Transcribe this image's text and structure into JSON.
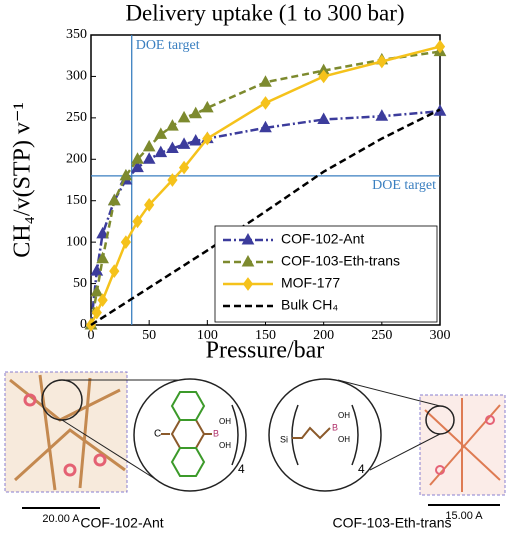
{
  "chart_data": {
    "type": "line",
    "title": "Delivery uptake (1 to 300 bar)",
    "x_label": "Pressure/bar",
    "y_label": "CH₄/v(STP) v⁻¹",
    "xlim": [
      0,
      300
    ],
    "xticks": [
      0,
      50,
      100,
      150,
      200,
      250,
      300
    ],
    "ylim": [
      0,
      350
    ],
    "yticks": [
      0,
      50,
      100,
      150,
      200,
      250,
      300,
      350
    ],
    "legend": "lower right",
    "reference_lines": [
      {
        "label": "DOE target",
        "x": 35,
        "color": "#3a7fc0"
      },
      {
        "label": "DOE target",
        "y": 180,
        "color": "#3a7fc0"
      }
    ],
    "series": [
      {
        "name": "COF-102-Ant",
        "color": "#3c3c9c",
        "marker": "triangle",
        "linestyle": "dashdot",
        "x": [
          0,
          5,
          10,
          20,
          30,
          40,
          50,
          60,
          70,
          80,
          90,
          100,
          150,
          200,
          250,
          300
        ],
        "values": [
          0,
          65,
          110,
          150,
          175,
          190,
          200,
          208,
          213,
          218,
          222,
          225,
          238,
          248,
          252,
          258
        ]
      },
      {
        "name": "COF-103-Eth-trans",
        "color": "#7d8a2e",
        "marker": "triangle",
        "linestyle": "dashed",
        "x": [
          0,
          5,
          10,
          20,
          30,
          40,
          50,
          60,
          70,
          80,
          90,
          100,
          150,
          200,
          250,
          300
        ],
        "values": [
          0,
          40,
          80,
          150,
          180,
          200,
          215,
          230,
          240,
          250,
          255,
          262,
          293,
          307,
          320,
          330
        ]
      },
      {
        "name": "MOF-177",
        "color": "#f5c21b",
        "marker": "diamond",
        "linestyle": "solid",
        "x": [
          0,
          5,
          10,
          20,
          30,
          40,
          50,
          70,
          80,
          100,
          150,
          200,
          250,
          300
        ],
        "values": [
          0,
          15,
          30,
          65,
          100,
          125,
          145,
          175,
          190,
          225,
          268,
          300,
          318,
          336
        ]
      },
      {
        "name": "Bulk CH₄",
        "color": "#000000",
        "marker": "none",
        "linestyle": "dashed",
        "x": [
          0,
          50,
          100,
          150,
          200,
          250,
          300
        ],
        "values": [
          0,
          45,
          90,
          137,
          185,
          225,
          260
        ]
      }
    ]
  },
  "figure": {
    "left_name": "COF-102-Ant",
    "right_name": "COF-103-Eth-trans",
    "left_scale": "20.00 A",
    "right_scale": "15.00 A",
    "left_atom": "C",
    "right_atom": "Si",
    "hydroxyl": "OH",
    "boron": "B",
    "count": "4"
  }
}
